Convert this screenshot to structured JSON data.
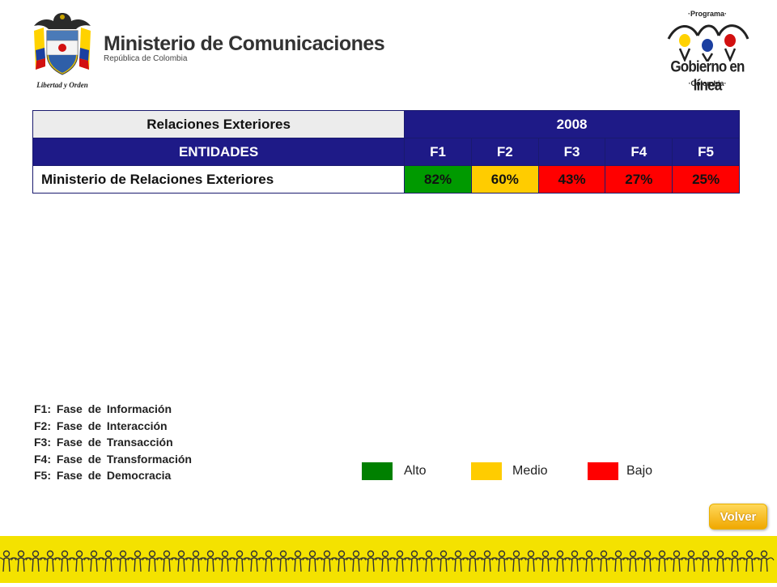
{
  "header": {
    "seal_motto": "Libertad y Orden",
    "ministry_name": "Ministerio de Comunicaciones",
    "ministry_subtitle": "República de Colombia",
    "program_top": "·Programa·",
    "program_main": "Gobierno en línea",
    "program_bottom": "·Colombia·",
    "seal_icon": "coat-of-arms-icon",
    "program_icon": "people-figures-icon"
  },
  "table": {
    "sector_label": "Relaciones Exteriores",
    "year_label": "2008",
    "entity_header": "ENTIDADES",
    "phase_headers": [
      "F1",
      "F2",
      "F3",
      "F4",
      "F5"
    ],
    "rows": [
      {
        "entity": "Ministerio de Relaciones Exteriores",
        "values": [
          "82%",
          "60%",
          "43%",
          "27%",
          "25%"
        ],
        "levels": [
          "alto",
          "medio",
          "bajo",
          "bajo",
          "bajo"
        ]
      }
    ]
  },
  "notes": [
    "F1: Fase de Información",
    "F2: Fase de Interacción",
    "F3: Fase de Transacción",
    "F4: Fase de Transformación",
    "F5: Fase de Democracia"
  ],
  "legend": [
    {
      "label": "Alto",
      "color": "#008000"
    },
    {
      "label": "Medio",
      "color": "#ffcc00"
    },
    {
      "label": "Bajo",
      "color": "#ff0000"
    }
  ],
  "colors": {
    "alto": "#009a00",
    "medio": "#ffcc00",
    "bajo": "#ff0000",
    "header_blue": "#1e1a87",
    "footer_yellow": "#f4e200"
  },
  "buttons": {
    "volver_label": "Volver"
  },
  "footer": {
    "pattern_icon": "people-chain-icon"
  }
}
